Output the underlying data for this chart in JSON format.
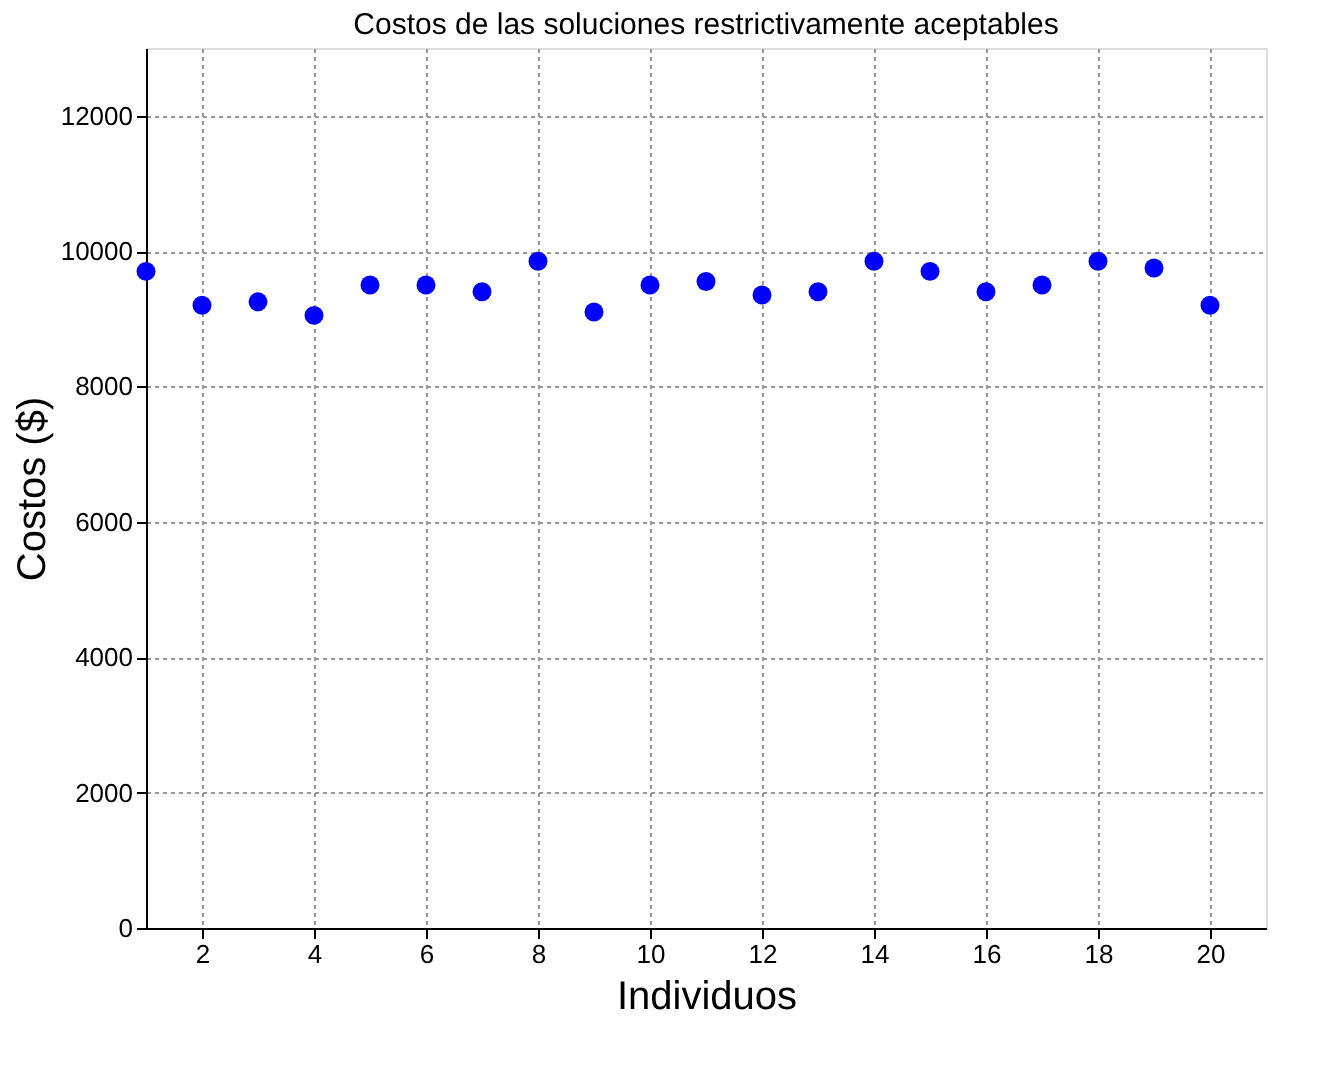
{
  "chart_data": {
    "type": "scatter",
    "title": "Costos de las soluciones restrictivamente aceptables",
    "xlabel": "Individuos",
    "ylabel": "Costos ($)",
    "x": [
      1,
      2,
      3,
      4,
      5,
      6,
      7,
      8,
      9,
      10,
      11,
      12,
      13,
      14,
      15,
      16,
      17,
      18,
      19,
      20
    ],
    "series": [
      {
        "color": "#0000ff",
        "values": [
          9700,
          9200,
          9250,
          9050,
          9500,
          9500,
          9400,
          9850,
          9100,
          9500,
          9550,
          9350,
          9400,
          9850,
          9700,
          9400,
          9500,
          9850,
          9750,
          9200
        ]
      }
    ],
    "xlim": [
      1,
      21
    ],
    "xticks": [
      2,
      4,
      6,
      8,
      10,
      12,
      14,
      16,
      18,
      20
    ],
    "ylim": [
      0,
      13000
    ],
    "yticks": [
      0,
      2000,
      4000,
      6000,
      8000,
      10000,
      12000
    ],
    "grid": true,
    "marker": "circle",
    "legend": false
  }
}
